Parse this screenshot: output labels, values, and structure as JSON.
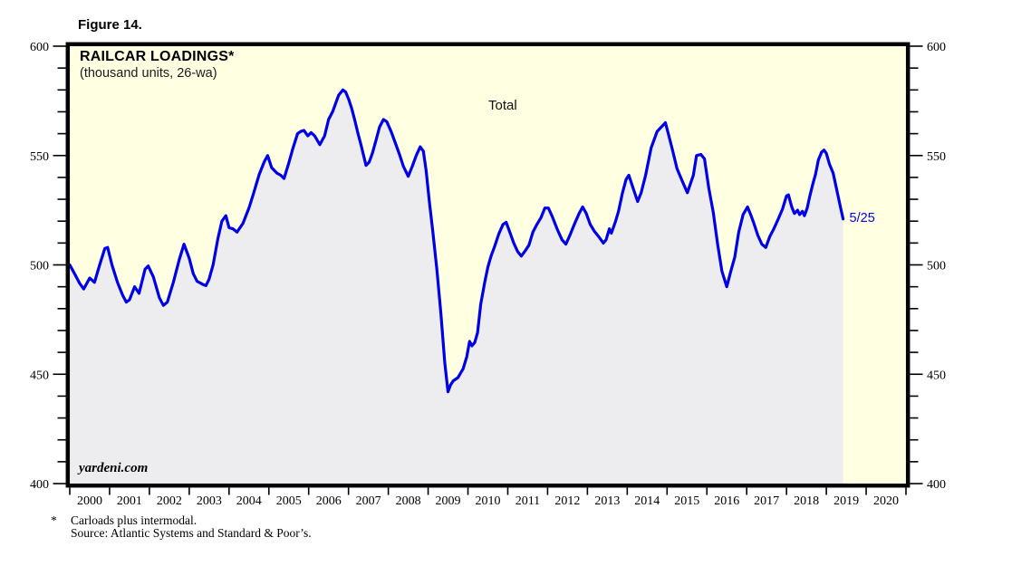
{
  "figure_label": "Figure 14.",
  "chart": {
    "title": "RAILCAR LOADINGS*",
    "subtitle": "(thousand units, 26-wa)",
    "series_label": "Total",
    "end_annotation": "5/25",
    "watermark": "yardeni.com",
    "colors": {
      "plot_background": "#ffffe1",
      "area_fill": "#ededf0",
      "line": "#0000e8",
      "frame": "#000000",
      "annotation": "#0000e8"
    }
  },
  "footnote": {
    "marker": "*",
    "line1": "Carloads plus intermodal.",
    "line2": "Source: Atlantic Systems and Standard & Poor’s."
  },
  "chart_data": {
    "type": "line",
    "title": "RAILCAR LOADINGS* (thousand units, 26-wa)",
    "xlabel": "",
    "ylabel": "thousand units, 26-week average",
    "x_range": [
      2000,
      2021
    ],
    "y_range": [
      400,
      600
    ],
    "y_major_ticks": [
      400,
      450,
      500,
      550,
      600
    ],
    "y_minor_step": 10,
    "x_tick_labels": [
      "2000",
      "2001",
      "2002",
      "2003",
      "2004",
      "2005",
      "2006",
      "2007",
      "2008",
      "2009",
      "2010",
      "2011",
      "2012",
      "2013",
      "2014",
      "2015",
      "2016",
      "2017",
      "2018",
      "2019",
      "2020"
    ],
    "grid": false,
    "legend_position": "inline-label",
    "last_point_label": "5/25",
    "series": [
      {
        "name": "Total",
        "points": [
          [
            2000.0,
            500
          ],
          [
            2000.12,
            496
          ],
          [
            2000.25,
            491.5
          ],
          [
            2000.35,
            489
          ],
          [
            2000.5,
            494
          ],
          [
            2000.62,
            492
          ],
          [
            2000.75,
            500
          ],
          [
            2000.88,
            507.5
          ],
          [
            2000.95,
            508
          ],
          [
            2001.06,
            500
          ],
          [
            2001.2,
            492
          ],
          [
            2001.33,
            486
          ],
          [
            2001.42,
            483
          ],
          [
            2001.5,
            484
          ],
          [
            2001.63,
            490
          ],
          [
            2001.74,
            487
          ],
          [
            2001.89,
            498
          ],
          [
            2001.97,
            499.5
          ],
          [
            2002.1,
            494.5
          ],
          [
            2002.25,
            485
          ],
          [
            2002.35,
            481.5
          ],
          [
            2002.45,
            483
          ],
          [
            2002.6,
            492
          ],
          [
            2002.75,
            502.5
          ],
          [
            2002.87,
            509.5
          ],
          [
            2003.0,
            503
          ],
          [
            2003.1,
            496
          ],
          [
            2003.2,
            492.5
          ],
          [
            2003.35,
            491
          ],
          [
            2003.42,
            490.5
          ],
          [
            2003.5,
            493.5
          ],
          [
            2003.6,
            500
          ],
          [
            2003.72,
            512
          ],
          [
            2003.82,
            520
          ],
          [
            2003.92,
            522.5
          ],
          [
            2004.0,
            517
          ],
          [
            2004.1,
            516.5
          ],
          [
            2004.2,
            515
          ],
          [
            2004.35,
            519
          ],
          [
            2004.5,
            526
          ],
          [
            2004.62,
            533
          ],
          [
            2004.75,
            541
          ],
          [
            2004.88,
            547
          ],
          [
            2004.97,
            550
          ],
          [
            2005.07,
            544.5
          ],
          [
            2005.2,
            542
          ],
          [
            2005.3,
            541
          ],
          [
            2005.38,
            539.5
          ],
          [
            2005.5,
            546.5
          ],
          [
            2005.6,
            553
          ],
          [
            2005.72,
            560
          ],
          [
            2005.8,
            561
          ],
          [
            2005.88,
            561.5
          ],
          [
            2005.98,
            559
          ],
          [
            2006.06,
            560.5
          ],
          [
            2006.15,
            559
          ],
          [
            2006.28,
            555
          ],
          [
            2006.4,
            559
          ],
          [
            2006.5,
            566.5
          ],
          [
            2006.6,
            570
          ],
          [
            2006.68,
            574
          ],
          [
            2006.75,
            577.5
          ],
          [
            2006.86,
            580
          ],
          [
            2006.93,
            579
          ],
          [
            2007.01,
            575.5
          ],
          [
            2007.08,
            571.5
          ],
          [
            2007.16,
            566
          ],
          [
            2007.24,
            560
          ],
          [
            2007.32,
            554.5
          ],
          [
            2007.44,
            545.5
          ],
          [
            2007.52,
            547
          ],
          [
            2007.6,
            551
          ],
          [
            2007.7,
            557.5
          ],
          [
            2007.78,
            563
          ],
          [
            2007.88,
            566.5
          ],
          [
            2007.96,
            565.5
          ],
          [
            2008.07,
            561
          ],
          [
            2008.16,
            556.5
          ],
          [
            2008.27,
            551
          ],
          [
            2008.38,
            545
          ],
          [
            2008.5,
            540.5
          ],
          [
            2008.6,
            545
          ],
          [
            2008.7,
            550
          ],
          [
            2008.8,
            554
          ],
          [
            2008.88,
            552
          ],
          [
            2008.95,
            543
          ],
          [
            2009.03,
            529
          ],
          [
            2009.12,
            515
          ],
          [
            2009.22,
            498
          ],
          [
            2009.32,
            478
          ],
          [
            2009.42,
            455
          ],
          [
            2009.5,
            442
          ],
          [
            2009.56,
            445
          ],
          [
            2009.63,
            447
          ],
          [
            2009.75,
            448.5
          ],
          [
            2009.88,
            452.5
          ],
          [
            2009.97,
            458
          ],
          [
            2010.04,
            465
          ],
          [
            2010.1,
            463
          ],
          [
            2010.17,
            464.5
          ],
          [
            2010.24,
            469
          ],
          [
            2010.32,
            482
          ],
          [
            2010.42,
            492
          ],
          [
            2010.5,
            499
          ],
          [
            2010.58,
            504
          ],
          [
            2010.67,
            508.5
          ],
          [
            2010.77,
            514
          ],
          [
            2010.88,
            518.5
          ],
          [
            2010.96,
            519.5
          ],
          [
            2011.05,
            515
          ],
          [
            2011.15,
            510
          ],
          [
            2011.25,
            506
          ],
          [
            2011.34,
            504
          ],
          [
            2011.44,
            506.5
          ],
          [
            2011.53,
            509
          ],
          [
            2011.63,
            515
          ],
          [
            2011.73,
            518.5
          ],
          [
            2011.83,
            521.5
          ],
          [
            2011.93,
            526
          ],
          [
            2012.02,
            526
          ],
          [
            2012.12,
            522
          ],
          [
            2012.25,
            516
          ],
          [
            2012.36,
            511.5
          ],
          [
            2012.46,
            509.5
          ],
          [
            2012.56,
            513.5
          ],
          [
            2012.67,
            518.5
          ],
          [
            2012.79,
            523.5
          ],
          [
            2012.88,
            526.5
          ],
          [
            2012.97,
            523.5
          ],
          [
            2013.07,
            518.5
          ],
          [
            2013.17,
            515.5
          ],
          [
            2013.28,
            513
          ],
          [
            2013.4,
            510
          ],
          [
            2013.47,
            511.5
          ],
          [
            2013.55,
            516.5
          ],
          [
            2013.6,
            514.5
          ],
          [
            2013.7,
            519.5
          ],
          [
            2013.78,
            524.5
          ],
          [
            2013.88,
            533
          ],
          [
            2013.97,
            539
          ],
          [
            2014.04,
            541
          ],
          [
            2014.15,
            535
          ],
          [
            2014.26,
            529
          ],
          [
            2014.35,
            533
          ],
          [
            2014.46,
            541
          ],
          [
            2014.6,
            553.5
          ],
          [
            2014.75,
            561
          ],
          [
            2014.88,
            563.5
          ],
          [
            2014.96,
            565
          ],
          [
            2015.06,
            558
          ],
          [
            2015.13,
            553
          ],
          [
            2015.25,
            544
          ],
          [
            2015.4,
            537.5
          ],
          [
            2015.51,
            533
          ],
          [
            2015.66,
            541
          ],
          [
            2015.74,
            550
          ],
          [
            2015.85,
            550.5
          ],
          [
            2015.94,
            548.5
          ],
          [
            2016.05,
            535
          ],
          [
            2016.16,
            524
          ],
          [
            2016.27,
            509.5
          ],
          [
            2016.38,
            497
          ],
          [
            2016.5,
            490
          ],
          [
            2016.6,
            497
          ],
          [
            2016.7,
            503.5
          ],
          [
            2016.8,
            515
          ],
          [
            2016.91,
            523
          ],
          [
            2017.02,
            526.5
          ],
          [
            2017.1,
            523
          ],
          [
            2017.18,
            519
          ],
          [
            2017.28,
            513.5
          ],
          [
            2017.38,
            509.5
          ],
          [
            2017.48,
            508
          ],
          [
            2017.58,
            513
          ],
          [
            2017.68,
            516.5
          ],
          [
            2017.78,
            520.5
          ],
          [
            2017.9,
            525.5
          ],
          [
            2018.0,
            531.5
          ],
          [
            2018.05,
            532
          ],
          [
            2018.13,
            526.5
          ],
          [
            2018.2,
            523.5
          ],
          [
            2018.28,
            525
          ],
          [
            2018.33,
            523
          ],
          [
            2018.4,
            524.5
          ],
          [
            2018.45,
            522.5
          ],
          [
            2018.52,
            526
          ],
          [
            2018.58,
            531
          ],
          [
            2018.66,
            537
          ],
          [
            2018.73,
            541.5
          ],
          [
            2018.8,
            548
          ],
          [
            2018.88,
            551.5
          ],
          [
            2018.94,
            552.5
          ],
          [
            2019.0,
            551
          ],
          [
            2019.08,
            546
          ],
          [
            2019.17,
            542
          ],
          [
            2019.23,
            537
          ],
          [
            2019.3,
            531
          ],
          [
            2019.36,
            526
          ],
          [
            2019.42,
            521
          ]
        ]
      }
    ]
  }
}
